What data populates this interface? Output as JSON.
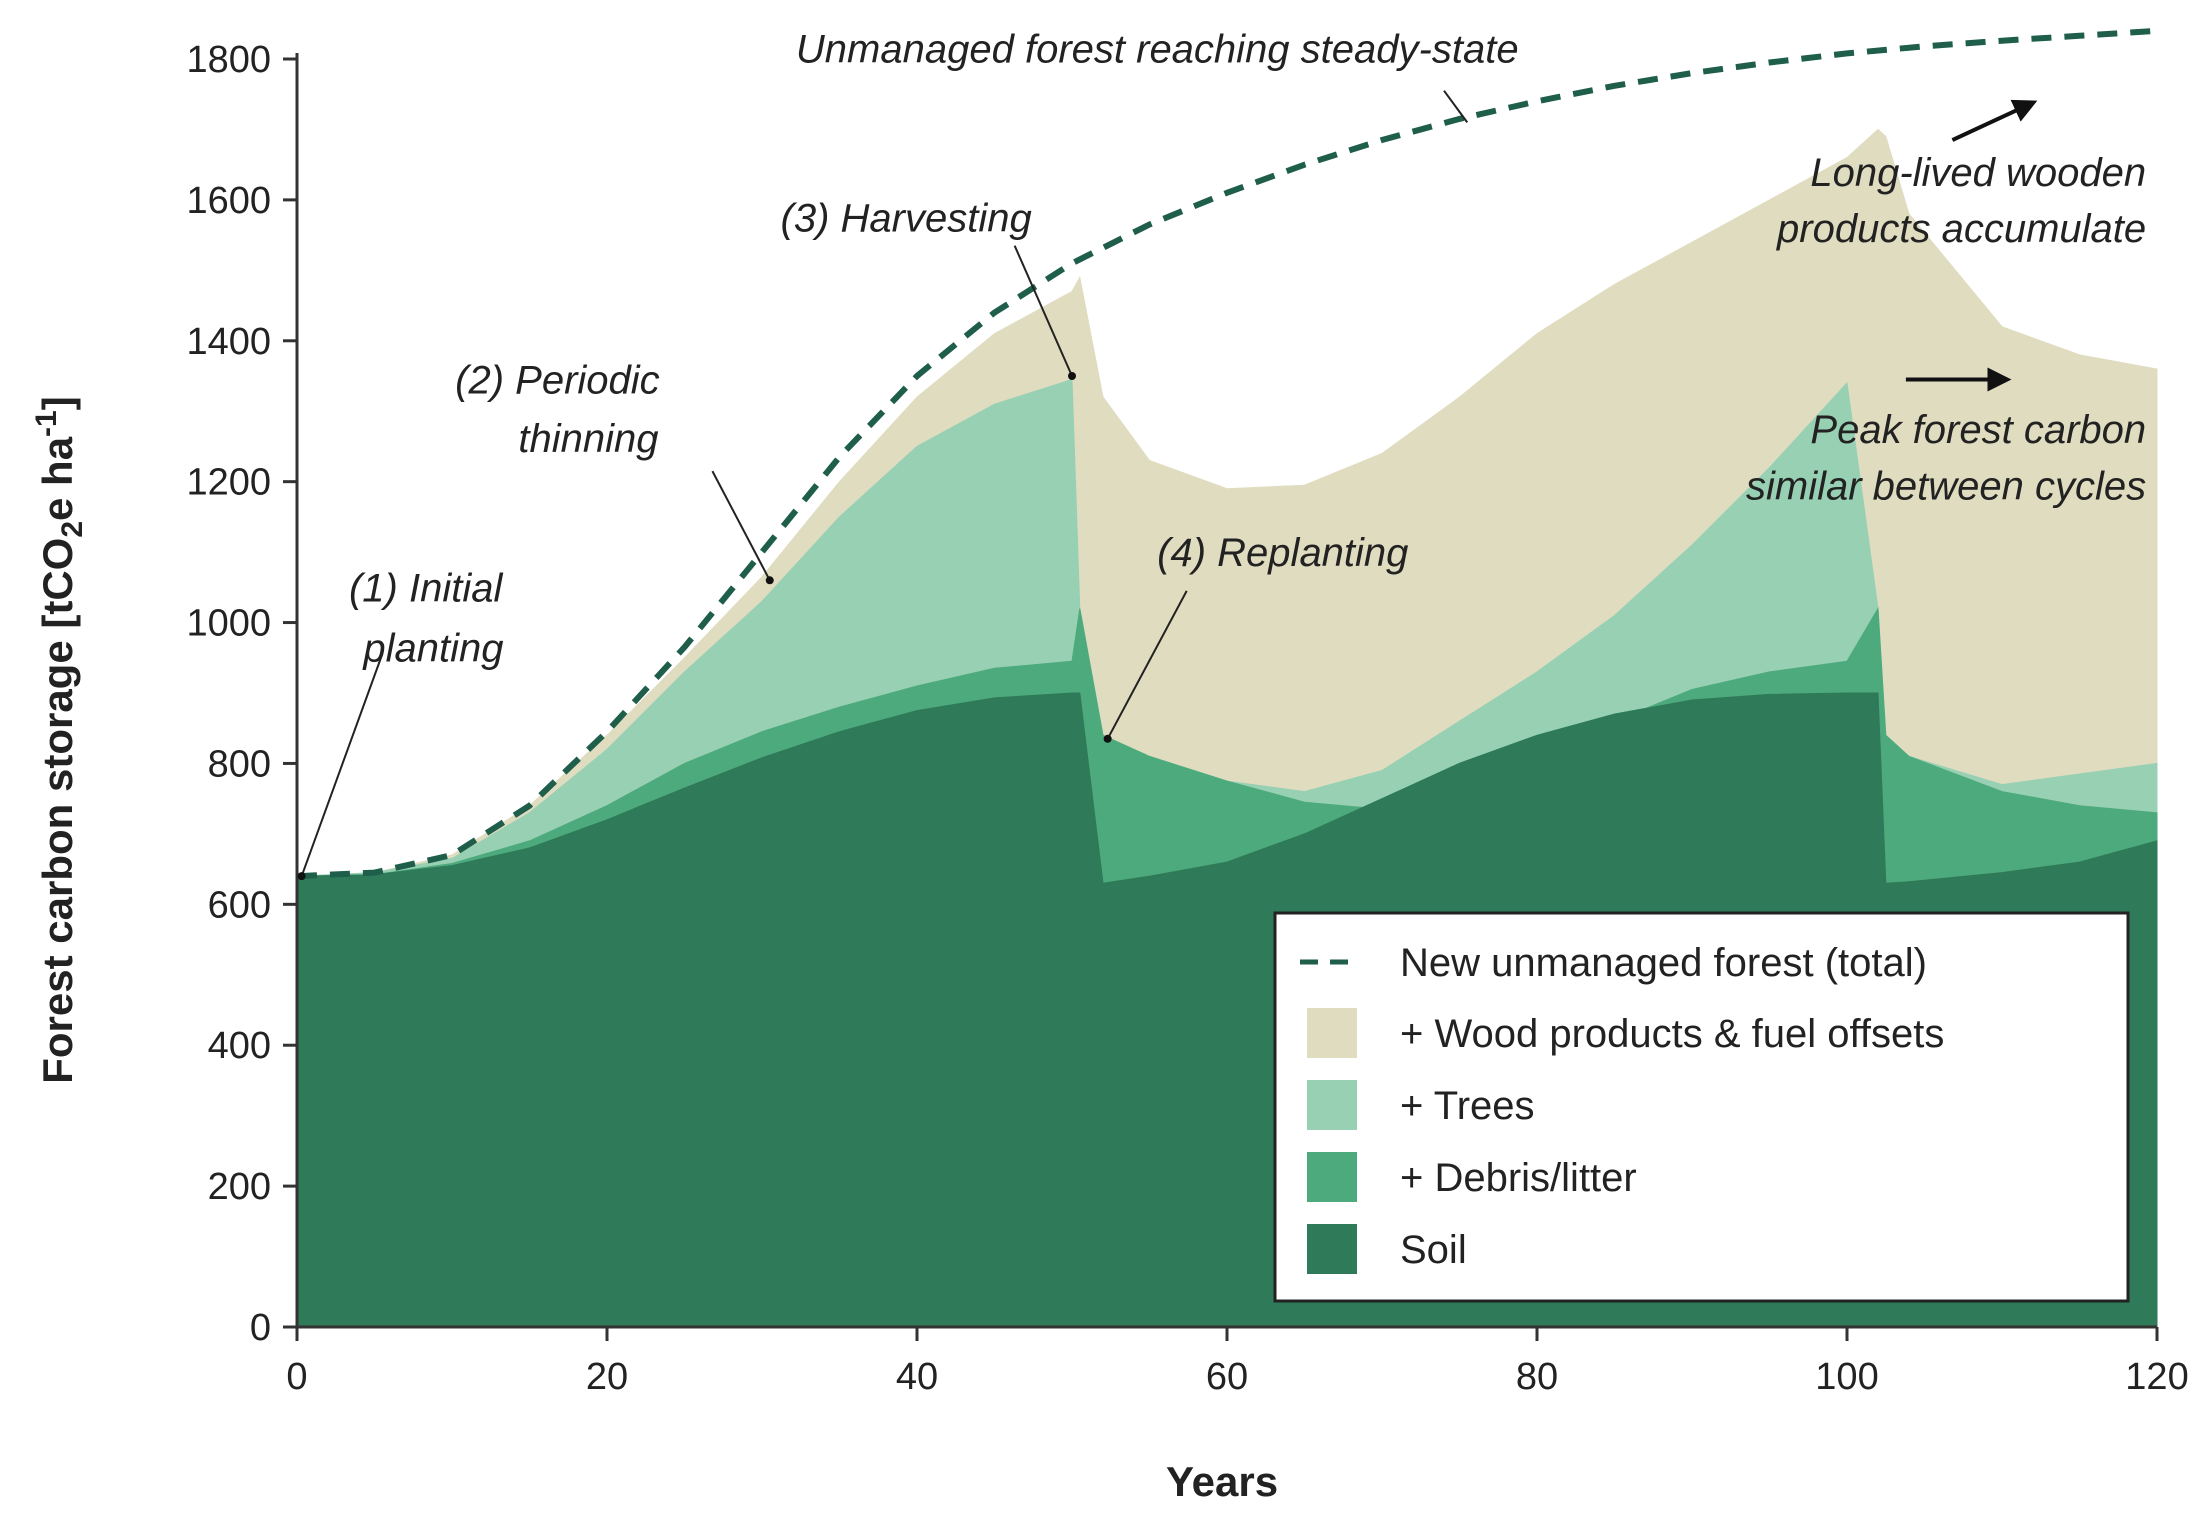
{
  "chart_data": {
    "type": "area",
    "xlabel": "Years",
    "ylabel_main": "Forest carbon storage [tCO",
    "ylabel_sub": "2",
    "ylabel_tail": "e ha",
    "ylabel_sup": "-1",
    "ylabel_close": "]",
    "xlim": [
      0,
      120
    ],
    "ylim": [
      0,
      1800
    ],
    "x_ticks": [
      0,
      20,
      40,
      60,
      80,
      100,
      120
    ],
    "y_ticks": [
      0,
      200,
      400,
      600,
      800,
      1000,
      1200,
      1400,
      1600,
      1800
    ],
    "grid": false,
    "legend_position": "bottom-right",
    "x": [
      0,
      5,
      10,
      15,
      20,
      25,
      30,
      35,
      40,
      45,
      50,
      50.5,
      52,
      55,
      60,
      65,
      70,
      75,
      80,
      85,
      90,
      95,
      100,
      102,
      102.5,
      104,
      110,
      115,
      120
    ],
    "series": [
      {
        "name": "Soil",
        "color": "#2f7a58",
        "values": [
          640,
          642,
          655,
          680,
          720,
          765,
          808,
          845,
          875,
          893,
          900,
          900,
          630,
          640,
          660,
          700,
          750,
          800,
          840,
          870,
          890,
          898,
          900,
          900,
          630,
          632,
          645,
          660,
          690
        ]
      },
      {
        "name": "+ Debris/litter",
        "color": "#4daa7c",
        "values": [
          640,
          642,
          658,
          690,
          740,
          800,
          845,
          880,
          910,
          935,
          945,
          1020,
          840,
          810,
          775,
          745,
          735,
          760,
          810,
          860,
          905,
          930,
          945,
          1020,
          840,
          810,
          760,
          740,
          730
        ]
      },
      {
        "name": "+ Trees",
        "color": "#98d0b4",
        "values": [
          640,
          645,
          665,
          730,
          820,
          930,
          1030,
          1150,
          1250,
          1310,
          1345,
          1020,
          840,
          810,
          775,
          760,
          790,
          860,
          930,
          1010,
          1110,
          1220,
          1340,
          1020,
          840,
          810,
          770,
          785,
          800
        ]
      },
      {
        "name": "+ Wood products & fuel offsets",
        "color": "#e0dcc0",
        "values": [
          640,
          645,
          670,
          740,
          840,
          950,
          1065,
          1200,
          1320,
          1410,
          1470,
          1490,
          1320,
          1230,
          1190,
          1195,
          1240,
          1320,
          1410,
          1480,
          1540,
          1600,
          1660,
          1700,
          1690,
          1580,
          1420,
          1380,
          1360
        ]
      }
    ],
    "unmanaged_line": {
      "name": "New unmanaged forest (total)",
      "color": "#1e5e4a",
      "x": [
        0,
        5,
        10,
        15,
        20,
        25,
        30,
        35,
        40,
        45,
        50,
        55,
        60,
        65,
        70,
        75,
        80,
        85,
        90,
        95,
        100,
        105,
        110,
        115,
        120
      ],
      "values": [
        640,
        645,
        670,
        740,
        845,
        965,
        1100,
        1235,
        1350,
        1440,
        1510,
        1565,
        1610,
        1650,
        1685,
        1715,
        1740,
        1762,
        1780,
        1795,
        1808,
        1818,
        1826,
        1833,
        1840
      ]
    },
    "annotations": [
      {
        "text": "(1) Initial",
        "lx": 8.3,
        "ly": 1030,
        "anchor": "middle"
      },
      {
        "text": "planting",
        "lx": 8.8,
        "ly": 945,
        "anchor": "middle"
      },
      {
        "text": "(2) Periodic",
        "lx": 16.8,
        "ly": 1325,
        "anchor": "middle"
      },
      {
        "text": "thinning",
        "lx": 18.8,
        "ly": 1242,
        "anchor": "middle"
      },
      {
        "text": "(3) Harvesting",
        "lx": 39.3,
        "ly": 1555,
        "anchor": "middle"
      },
      {
        "text": "(4) Replanting",
        "lx": 63.6,
        "ly": 1080,
        "anchor": "middle"
      },
      {
        "text": "Unmanaged forest reaching steady-state",
        "lx": 55.5,
        "ly": 1795,
        "anchor": "middle"
      },
      {
        "text": "Long-lived wooden",
        "lx": 119.3,
        "ly": 1620,
        "anchor": "end"
      },
      {
        "text": "products accumulate",
        "lx": 119.3,
        "ly": 1540,
        "anchor": "end"
      },
      {
        "text": "Peak forest carbon",
        "lx": 119.3,
        "ly": 1255,
        "anchor": "end"
      },
      {
        "text": "similar between cycles",
        "lx": 119.3,
        "ly": 1175,
        "anchor": "end"
      }
    ],
    "pointers": [
      {
        "x1": 5.5,
        "y1": 955,
        "x2": 0.3,
        "y2": 640,
        "dot": true
      },
      {
        "x1": 26.8,
        "y1": 1215,
        "x2": 30.5,
        "y2": 1060,
        "dot": true
      },
      {
        "x1": 46.3,
        "y1": 1535,
        "x2": 50,
        "y2": 1350,
        "dot": true
      },
      {
        "x1": 57.4,
        "y1": 1045,
        "x2": 52.3,
        "y2": 835,
        "dot": true
      },
      {
        "x1": 74,
        "y1": 1755,
        "x2": 75.5,
        "y2": 1710,
        "dot": false
      }
    ],
    "arrows": [
      {
        "x1": 106.8,
        "y1": 1685,
        "x2": 112,
        "y2": 1738
      },
      {
        "x1": 103.8,
        "y1": 1345,
        "x2": 110.3,
        "y2": 1345
      }
    ]
  }
}
